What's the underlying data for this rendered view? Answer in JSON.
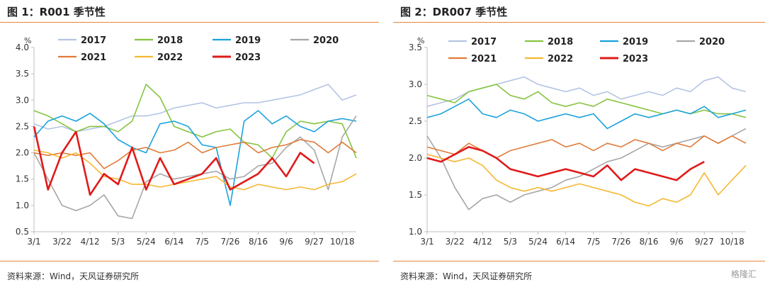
{
  "chart_data": [
    {
      "id": "r001",
      "type": "line",
      "title": "图 1：R001 季节性",
      "ylabel": "%",
      "ylim": [
        0.5,
        4.0
      ],
      "yticks": [
        "0.5",
        "1.0",
        "1.5",
        "2.0",
        "2.5",
        "3.0",
        "3.5",
        "4.0"
      ],
      "xtick_labels": [
        "3/1",
        "3/22",
        "4/12",
        "5/3",
        "5/24",
        "6/14",
        "7/5",
        "7/26",
        "8/16",
        "9/6",
        "9/27",
        "10/18"
      ],
      "source": "资料来源：Wind，天风证券研究所",
      "legend_position": "top",
      "series": [
        {
          "name": "2017",
          "color": "#b4c4e4",
          "values": [
            2.55,
            2.45,
            2.5,
            2.4,
            2.45,
            2.5,
            2.6,
            2.7,
            2.7,
            2.75,
            2.85,
            2.9,
            2.95,
            2.85,
            2.9,
            2.95,
            2.95,
            3.0,
            3.05,
            3.1,
            3.2,
            3.3,
            3.0,
            3.1
          ]
        },
        {
          "name": "2018",
          "color": "#86c440",
          "values": [
            2.8,
            2.7,
            2.55,
            2.4,
            2.5,
            2.5,
            2.4,
            2.6,
            3.3,
            3.05,
            2.5,
            2.4,
            2.3,
            2.4,
            2.45,
            2.2,
            2.15,
            1.9,
            2.4,
            2.6,
            2.55,
            2.6,
            2.55,
            1.9
          ]
        },
        {
          "name": "2019",
          "color": "#1aa3dc",
          "values": [
            2.3,
            2.6,
            2.7,
            2.6,
            2.75,
            2.55,
            2.25,
            2.1,
            2.0,
            2.55,
            2.6,
            2.5,
            2.15,
            2.1,
            1.0,
            2.6,
            2.8,
            2.55,
            2.7,
            2.5,
            2.4,
            2.6,
            2.65,
            2.6
          ]
        },
        {
          "name": "2020",
          "color": "#a6a6a6",
          "values": [
            2.0,
            1.5,
            1.0,
            0.9,
            1.0,
            1.2,
            0.8,
            0.75,
            1.45,
            1.6,
            1.5,
            1.55,
            1.6,
            1.65,
            1.5,
            1.55,
            1.75,
            1.8,
            2.1,
            2.3,
            2.05,
            1.3,
            2.3,
            2.7
          ]
        },
        {
          "name": "2021",
          "color": "#e07b39",
          "values": [
            2.0,
            1.95,
            2.0,
            1.95,
            2.0,
            1.7,
            1.85,
            2.05,
            2.1,
            2.0,
            2.05,
            2.2,
            2.0,
            2.1,
            2.15,
            2.2,
            2.0,
            2.1,
            2.15,
            2.25,
            2.2,
            2.0,
            2.2,
            2.0
          ]
        },
        {
          "name": "2022",
          "color": "#f5b731",
          "values": [
            2.05,
            2.0,
            1.9,
            2.0,
            1.8,
            1.55,
            1.5,
            1.4,
            1.4,
            1.35,
            1.4,
            1.45,
            1.5,
            1.55,
            1.35,
            1.3,
            1.4,
            1.35,
            1.3,
            1.35,
            1.3,
            1.4,
            1.45,
            1.6
          ]
        },
        {
          "name": "2023",
          "color": "#e01a1a",
          "values": [
            2.5,
            1.3,
            2.0,
            2.4,
            1.2,
            1.6,
            1.4,
            2.1,
            1.3,
            1.9,
            1.4,
            1.5,
            1.6,
            1.9,
            1.3,
            1.45,
            1.6,
            1.9,
            1.55,
            2.0,
            1.8
          ]
        }
      ]
    },
    {
      "id": "dr007",
      "type": "line",
      "title": "图 2：DR007 季节性",
      "ylabel": "%",
      "ylim": [
        1.0,
        3.5
      ],
      "yticks": [
        "1.0",
        "1.5",
        "2.0",
        "2.5",
        "3.0",
        "3.5"
      ],
      "xtick_labels": [
        "3/1",
        "3/22",
        "4/12",
        "5/3",
        "5/24",
        "6/14",
        "7/5",
        "7/26",
        "8/16",
        "9/6",
        "9/27",
        "10/18"
      ],
      "source": "资料来源：Wind，天风证券研究所",
      "watermark": "格隆汇",
      "legend_position": "top",
      "series": [
        {
          "name": "2017",
          "color": "#b4c4e4",
          "values": [
            2.7,
            2.75,
            2.8,
            2.9,
            2.95,
            3.0,
            3.05,
            3.1,
            3.0,
            2.95,
            2.9,
            2.95,
            2.85,
            2.9,
            2.8,
            2.85,
            2.9,
            2.85,
            2.95,
            2.9,
            3.05,
            3.1,
            2.95,
            2.9
          ]
        },
        {
          "name": "2018",
          "color": "#86c440",
          "values": [
            2.85,
            2.8,
            2.75,
            2.9,
            2.95,
            3.0,
            2.85,
            2.8,
            2.9,
            2.75,
            2.7,
            2.75,
            2.7,
            2.8,
            2.75,
            2.7,
            2.65,
            2.6,
            2.65,
            2.6,
            2.65,
            2.6,
            2.6,
            2.55
          ]
        },
        {
          "name": "2019",
          "color": "#1aa3dc",
          "values": [
            2.55,
            2.6,
            2.7,
            2.8,
            2.6,
            2.55,
            2.65,
            2.6,
            2.5,
            2.55,
            2.6,
            2.55,
            2.6,
            2.4,
            2.5,
            2.6,
            2.55,
            2.6,
            2.65,
            2.6,
            2.7,
            2.55,
            2.6,
            2.65
          ]
        },
        {
          "name": "2020",
          "color": "#a6a6a6",
          "values": [
            2.3,
            2.0,
            1.6,
            1.3,
            1.45,
            1.5,
            1.4,
            1.5,
            1.55,
            1.6,
            1.7,
            1.75,
            1.85,
            1.95,
            2.0,
            2.1,
            2.2,
            2.15,
            2.2,
            2.25,
            2.3,
            2.2,
            2.3,
            2.4
          ]
        },
        {
          "name": "2021",
          "color": "#e07b39",
          "values": [
            2.15,
            2.1,
            2.05,
            2.2,
            2.1,
            2.0,
            2.1,
            2.15,
            2.2,
            2.25,
            2.15,
            2.2,
            2.1,
            2.2,
            2.15,
            2.25,
            2.2,
            2.1,
            2.2,
            2.15,
            2.3,
            2.2,
            2.3,
            2.2
          ]
        },
        {
          "name": "2022",
          "color": "#f5b731",
          "values": [
            2.05,
            2.0,
            1.95,
            2.0,
            1.9,
            1.7,
            1.6,
            1.55,
            1.6,
            1.55,
            1.6,
            1.65,
            1.6,
            1.55,
            1.5,
            1.4,
            1.35,
            1.45,
            1.4,
            1.5,
            1.8,
            1.5,
            1.7,
            1.9
          ]
        },
        {
          "name": "2023",
          "color": "#e01a1a",
          "values": [
            2.0,
            1.95,
            2.05,
            2.15,
            2.1,
            2.0,
            1.85,
            1.8,
            1.75,
            1.8,
            1.85,
            1.8,
            1.75,
            1.9,
            1.7,
            1.85,
            1.8,
            1.75,
            1.7,
            1.85,
            1.95
          ]
        }
      ]
    }
  ]
}
